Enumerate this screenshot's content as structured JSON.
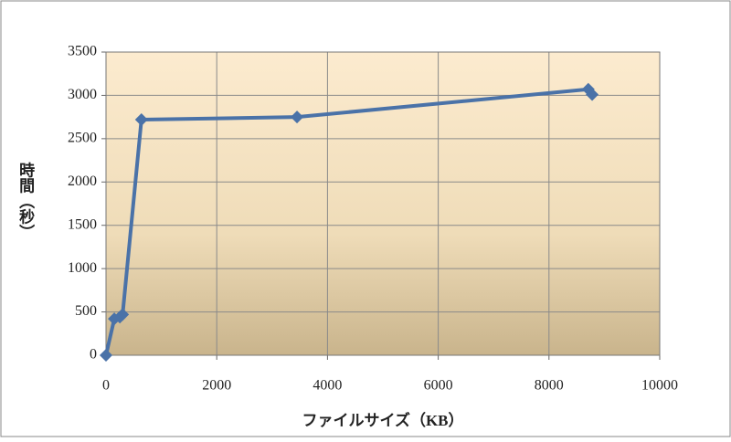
{
  "chart_data": {
    "type": "line",
    "y_label": "時間（秒）",
    "x_label": "ファイルサイズ（KB）",
    "series": [
      {
        "color": "#4a72a8",
        "x": [
          0,
          150,
          250,
          300,
          640,
          3450,
          8710,
          8780
        ],
        "values": [
          0,
          420,
          440,
          470,
          2720,
          2750,
          3070,
          3010
        ]
      }
    ],
    "xlim": [
      0,
      10000
    ],
    "xticks": [
      0,
      2000,
      4000,
      6000,
      8000,
      10000
    ],
    "ylim": [
      0,
      3500
    ],
    "yticks": [
      0,
      500,
      1000,
      1500,
      2000,
      2500,
      3000,
      3500
    ],
    "grid": true
  }
}
